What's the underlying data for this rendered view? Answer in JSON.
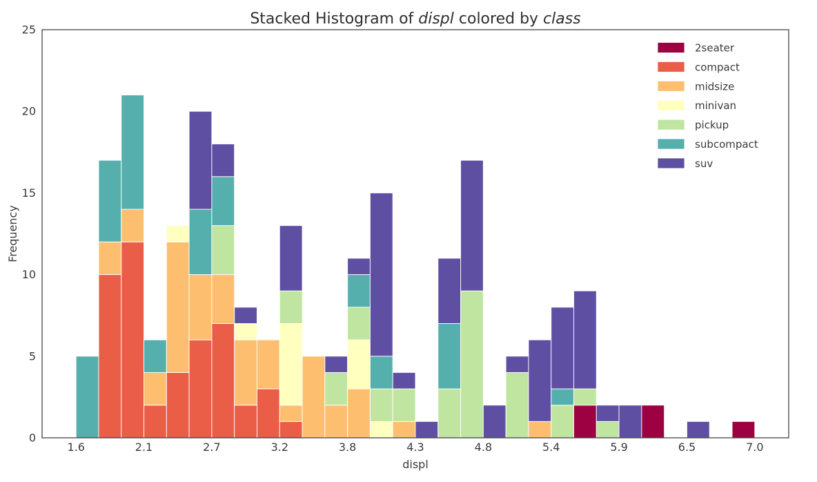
{
  "figure": {
    "title_parts": [
      {
        "text": "Stacked Histogram of ",
        "italic": false
      },
      {
        "text": "displ",
        "italic": true
      },
      {
        "text": " colored by ",
        "italic": false
      },
      {
        "text": "class",
        "italic": true
      }
    ]
  },
  "chart_data": {
    "type": "bar",
    "stacked": true,
    "title": "Stacked Histogram of displ colored by class",
    "xlabel": "displ",
    "ylabel": "Frequency",
    "grid": false,
    "legend_position": "upper-right",
    "legend_frame": false,
    "x_bin_start": 1.6,
    "x_bin_width": 0.18,
    "n_bins": 30,
    "xlim": [
      1.33,
      7.27
    ],
    "ylim": [
      0,
      25
    ],
    "x_ticks": [
      {
        "value": 1.6,
        "label": "1.6"
      },
      {
        "value": 2.14,
        "label": "2.1"
      },
      {
        "value": 2.68,
        "label": "2.7"
      },
      {
        "value": 3.22,
        "label": "3.2"
      },
      {
        "value": 3.76,
        "label": "3.8"
      },
      {
        "value": 4.3,
        "label": "4.3"
      },
      {
        "value": 4.84,
        "label": "4.8"
      },
      {
        "value": 5.38,
        "label": "5.4"
      },
      {
        "value": 5.92,
        "label": "5.9"
      },
      {
        "value": 6.46,
        "label": "6.5"
      },
      {
        "value": 7.0,
        "label": "7.0"
      }
    ],
    "y_ticks": [
      {
        "value": 0,
        "label": "0"
      },
      {
        "value": 5,
        "label": "5"
      },
      {
        "value": 10,
        "label": "10"
      },
      {
        "value": 15,
        "label": "15"
      },
      {
        "value": 20,
        "label": "20"
      },
      {
        "value": 25,
        "label": "25"
      }
    ],
    "series": [
      {
        "name": "2seater",
        "color": "#9e0142",
        "values": [
          0,
          0,
          0,
          0,
          0,
          0,
          0,
          0,
          0,
          0,
          0,
          0,
          0,
          0,
          0,
          0,
          0,
          0,
          0,
          0,
          0,
          0,
          2,
          0,
          0,
          2,
          0,
          0,
          0,
          1
        ]
      },
      {
        "name": "compact",
        "color": "#ea5d47",
        "values": [
          0,
          10,
          12,
          2,
          4,
          6,
          7,
          2,
          3,
          1,
          0,
          0,
          0,
          0,
          0,
          0,
          0,
          0,
          0,
          0,
          0,
          0,
          0,
          0,
          0,
          0,
          0,
          0,
          0,
          0
        ]
      },
      {
        "name": "midsize",
        "color": "#fdbf6f",
        "values": [
          0,
          2,
          2,
          2,
          8,
          4,
          3,
          4,
          3,
          1,
          5,
          2,
          3,
          0,
          1,
          0,
          0,
          0,
          0,
          0,
          1,
          0,
          0,
          0,
          0,
          0,
          0,
          0,
          0,
          0
        ]
      },
      {
        "name": "minivan",
        "color": "#ffffbf",
        "values": [
          0,
          0,
          0,
          0,
          1,
          0,
          0,
          1,
          0,
          5,
          0,
          0,
          3,
          1,
          0,
          0,
          0,
          0,
          0,
          0,
          0,
          0,
          0,
          0,
          0,
          0,
          0,
          0,
          0,
          0
        ]
      },
      {
        "name": "pickup",
        "color": "#bfe5a0",
        "values": [
          0,
          0,
          0,
          0,
          0,
          0,
          3,
          0,
          0,
          2,
          0,
          2,
          2,
          2,
          2,
          0,
          3,
          9,
          0,
          4,
          0,
          2,
          1,
          1,
          0,
          0,
          0,
          0,
          0,
          0
        ]
      },
      {
        "name": "subcompact",
        "color": "#55afad",
        "values": [
          5,
          5,
          7,
          2,
          0,
          4,
          3,
          0,
          0,
          0,
          0,
          0,
          2,
          2,
          0,
          0,
          4,
          0,
          0,
          0,
          0,
          1,
          0,
          0,
          0,
          0,
          0,
          0,
          0,
          0
        ]
      },
      {
        "name": "suv",
        "color": "#5e4fa2",
        "values": [
          0,
          0,
          0,
          0,
          0,
          6,
          2,
          1,
          0,
          4,
          0,
          1,
          1,
          10,
          1,
          1,
          4,
          8,
          2,
          1,
          5,
          5,
          6,
          1,
          2,
          0,
          0,
          1,
          0,
          0
        ]
      }
    ]
  },
  "style": {
    "spine_color": "#454545",
    "tick_text_color": "#3a3a3a",
    "title_color": "#2e2e2e",
    "segment_edge_color": "#ffffff",
    "background": "#ffffff"
  }
}
